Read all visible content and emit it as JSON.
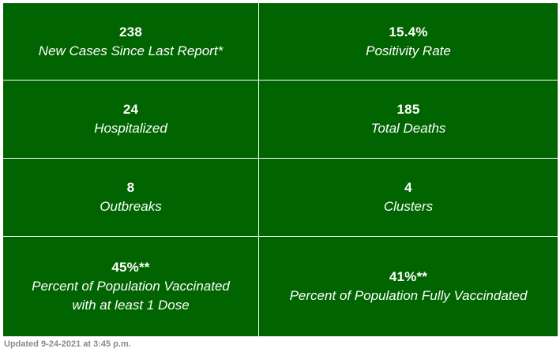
{
  "colors": {
    "cell_background": "#006400",
    "cell_text": "#ffffff",
    "grid_lines": "#ffffff",
    "footer_text": "#8a8a8a"
  },
  "stats": [
    {
      "value": "238",
      "label": "New Cases Since Last Report*"
    },
    {
      "value": "15.4%",
      "label": "Positivity Rate"
    },
    {
      "value": "24",
      "label": "Hospitalized"
    },
    {
      "value": "185",
      "label": "Total Deaths"
    },
    {
      "value": "8",
      "label": "Outbreaks"
    },
    {
      "value": "4",
      "label": "Clusters"
    },
    {
      "value": "45%**",
      "label_lines": [
        "Percent of Population Vaccinated",
        "with at least 1 Dose"
      ]
    },
    {
      "value": "41%**",
      "label": "Percent of Population Fully Vaccindated"
    }
  ],
  "footer": {
    "updated_text": "Updated 9-24-2021 at 3:45 p.m."
  }
}
